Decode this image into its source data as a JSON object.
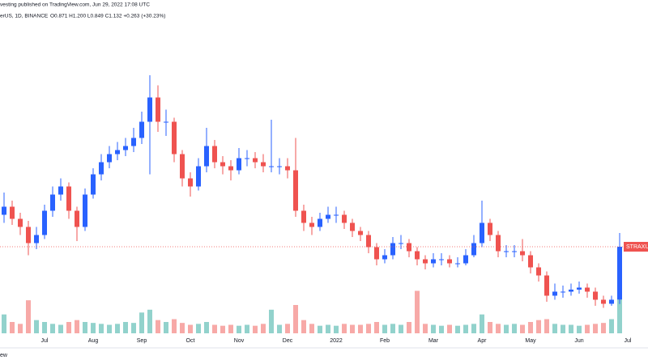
{
  "header": {
    "published": "vesting published on TradingView.com, Jun 29, 2022 17:08 UTC",
    "symbol": "erUS, 1D, BINANCE",
    "ohlc": "O0.871 H1.200 L0.849 C1.132 +0.263 (+30.23%)"
  },
  "footer": {
    "text": "ew"
  },
  "chart_data": {
    "type": "candlestick",
    "categories": [
      null,
      null,
      null,
      null,
      null,
      "Jul",
      null,
      null,
      null,
      null,
      null,
      "Aug",
      null,
      null,
      null,
      null,
      null,
      "Sep",
      null,
      null,
      null,
      null,
      null,
      "Oct",
      null,
      null,
      null,
      null,
      null,
      "Nov",
      null,
      null,
      null,
      null,
      null,
      "Dec",
      null,
      null,
      null,
      null,
      null,
      "2022",
      null,
      null,
      null,
      null,
      null,
      "Feb",
      null,
      null,
      null,
      null,
      null,
      "Mar",
      null,
      null,
      null,
      null,
      null,
      "Apr",
      null,
      null,
      null,
      null,
      null,
      "May",
      null,
      null,
      null,
      null,
      null,
      "Jun",
      null,
      null,
      null,
      null,
      null,
      "Jul"
    ],
    "open": [
      1.29,
      1.33,
      1.27,
      1.23,
      1.15,
      1.19,
      1.31,
      1.39,
      1.43,
      1.31,
      1.23,
      1.39,
      1.49,
      1.55,
      1.59,
      1.61,
      1.63,
      1.67,
      1.75,
      1.87,
      1.75,
      1.75,
      1.59,
      1.47,
      1.43,
      1.53,
      1.63,
      1.55,
      1.53,
      1.51,
      1.57,
      1.57,
      1.55,
      1.53,
      1.53,
      1.53,
      1.51,
      1.31,
      1.25,
      1.23,
      1.27,
      1.29,
      1.29,
      1.25,
      1.21,
      1.19,
      1.13,
      1.07,
      1.09,
      1.15,
      1.15,
      1.11,
      1.07,
      1.05,
      1.07,
      1.07,
      1.05,
      1.05,
      1.09,
      1.15,
      1.25,
      1.19,
      1.11,
      1.11,
      1.11,
      1.09,
      1.03,
      0.99,
      0.89,
      0.91,
      0.91,
      0.92,
      0.93,
      0.91,
      0.87,
      0.85,
      0.871,
      null
    ],
    "high": [
      1.4,
      1.36,
      1.3,
      1.26,
      1.23,
      1.34,
      1.43,
      1.47,
      1.45,
      1.33,
      1.42,
      1.52,
      1.59,
      1.63,
      1.65,
      1.67,
      1.72,
      1.8,
      1.98,
      1.93,
      1.81,
      1.77,
      1.61,
      1.5,
      1.57,
      1.72,
      1.66,
      1.58,
      1.56,
      1.62,
      1.61,
      1.6,
      1.59,
      1.76,
      1.57,
      1.57,
      1.67,
      1.34,
      1.28,
      1.3,
      1.33,
      1.33,
      1.31,
      1.27,
      1.23,
      1.21,
      1.15,
      1.12,
      1.18,
      1.19,
      1.17,
      1.13,
      1.09,
      1.1,
      1.1,
      1.09,
      1.08,
      1.12,
      1.19,
      1.36,
      1.27,
      1.21,
      1.14,
      1.14,
      1.17,
      1.11,
      1.05,
      1.01,
      0.95,
      0.94,
      0.95,
      0.96,
      0.95,
      0.93,
      0.89,
      0.89,
      1.2,
      null
    ],
    "low": [
      1.25,
      1.24,
      1.19,
      1.09,
      1.12,
      1.17,
      1.28,
      1.36,
      1.27,
      1.16,
      1.21,
      1.37,
      1.46,
      1.52,
      1.56,
      1.58,
      1.6,
      1.64,
      1.49,
      1.7,
      1.68,
      1.55,
      1.43,
      1.38,
      1.41,
      1.5,
      1.52,
      1.49,
      1.46,
      1.49,
      1.53,
      1.52,
      1.5,
      1.5,
      1.49,
      1.47,
      1.28,
      1.21,
      1.19,
      1.21,
      1.25,
      1.25,
      1.22,
      1.18,
      1.16,
      1.1,
      1.04,
      1.05,
      1.07,
      1.12,
      1.08,
      1.04,
      1.02,
      1.03,
      1.04,
      1.03,
      1.03,
      1.04,
      1.08,
      1.13,
      1.16,
      1.08,
      1.08,
      1.08,
      1.06,
      1.0,
      0.96,
      0.86,
      0.87,
      0.88,
      0.89,
      0.9,
      0.88,
      0.84,
      0.83,
      0.84,
      0.849,
      null
    ],
    "close": [
      1.33,
      1.27,
      1.23,
      1.15,
      1.19,
      1.31,
      1.39,
      1.43,
      1.31,
      1.23,
      1.39,
      1.49,
      1.55,
      1.59,
      1.61,
      1.63,
      1.67,
      1.75,
      1.87,
      1.75,
      1.75,
      1.59,
      1.47,
      1.43,
      1.53,
      1.63,
      1.55,
      1.53,
      1.51,
      1.57,
      1.57,
      1.55,
      1.53,
      1.53,
      1.53,
      1.51,
      1.31,
      1.25,
      1.23,
      1.27,
      1.29,
      1.29,
      1.25,
      1.21,
      1.19,
      1.13,
      1.07,
      1.09,
      1.15,
      1.15,
      1.11,
      1.07,
      1.05,
      1.07,
      1.07,
      1.05,
      1.05,
      1.09,
      1.15,
      1.25,
      1.19,
      1.11,
      1.11,
      1.11,
      1.09,
      1.03,
      0.99,
      0.89,
      0.91,
      0.91,
      0.92,
      0.93,
      0.91,
      0.87,
      0.85,
      0.87,
      1.132,
      null
    ],
    "volume": [
      20,
      12,
      10,
      35,
      14,
      12,
      10,
      9,
      12,
      14,
      12,
      11,
      10,
      9,
      10,
      12,
      11,
      22,
      25,
      14,
      12,
      15,
      11,
      9,
      10,
      12,
      9,
      8,
      9,
      8,
      9,
      8,
      10,
      25,
      9,
      10,
      30,
      14,
      10,
      8,
      9,
      8,
      10,
      9,
      9,
      10,
      12,
      9,
      10,
      9,
      12,
      45,
      10,
      9,
      8,
      9,
      8,
      9,
      10,
      20,
      12,
      10,
      9,
      10,
      9,
      12,
      14,
      15,
      10,
      9,
      9,
      8,
      9,
      10,
      11,
      15,
      60,
      null
    ],
    "ylim": [
      0.712,
      2.232
    ],
    "up_color": "#2962ff",
    "down_color": "#ef5350",
    "volume_up_color": "#26a69a",
    "volume_down_color": "#ef5350",
    "price_label": "STRAXUSD",
    "grid": false
  }
}
